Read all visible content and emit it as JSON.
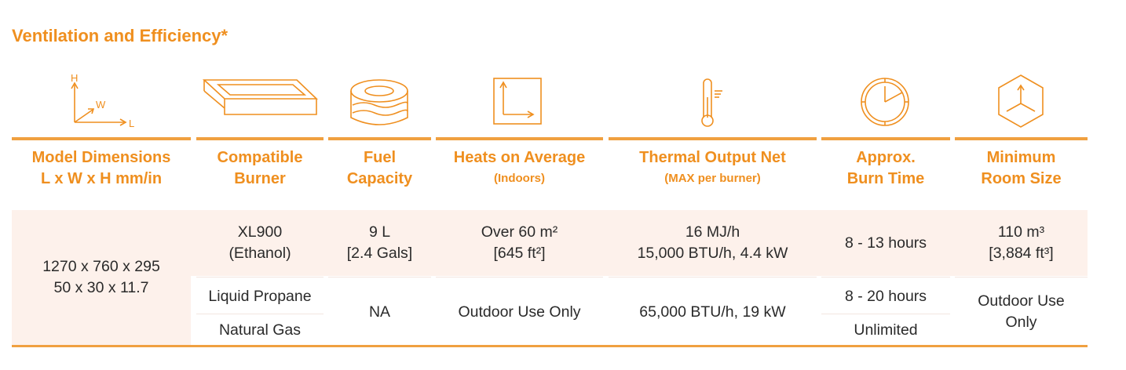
{
  "title": "Ventilation and Efficiency*",
  "icon_labels": {
    "h": "H",
    "w": "W",
    "l": "L"
  },
  "table": {
    "headers": [
      {
        "lines": [
          "Model Dimensions",
          "L x W x H mm/in"
        ]
      },
      {
        "lines": [
          "Compatible",
          "Burner"
        ]
      },
      {
        "lines": [
          "Fuel",
          "Capacity"
        ]
      },
      {
        "lines": [
          "Heats on Average"
        ],
        "note": "(Indoors)"
      },
      {
        "lines": [
          "Thermal Output Net"
        ],
        "note": "(MAX per burner)"
      },
      {
        "lines": [
          "Approx.",
          "Burn Time"
        ]
      },
      {
        "lines": [
          "Minimum",
          "Room Size"
        ]
      }
    ],
    "rows": [
      [
        [
          "1270 x 760 x 295",
          "50 x 30 x 11.7"
        ],
        [
          "XL900",
          "(Ethanol)"
        ],
        [
          "9 L",
          "[2.4 Gals]"
        ],
        [
          "Over 60 m²",
          "[645 ft²]"
        ],
        [
          "16 MJ/h",
          "15,000 BTU/h, 4.4 kW"
        ],
        [
          "8 - 13 hours"
        ],
        [
          "110 m³",
          "[3,884 ft³]"
        ]
      ],
      [
        [
          "Liquid Propane"
        ],
        [
          "NA"
        ],
        [
          "Outdoor Use Only"
        ],
        [
          "65,000 BTU/h, 19 kW"
        ],
        [
          "8 - 20 hours"
        ],
        [
          "Outdoor Use",
          "Only"
        ]
      ],
      [
        [
          "Natural Gas"
        ],
        [
          "Unlimited"
        ]
      ]
    ]
  }
}
